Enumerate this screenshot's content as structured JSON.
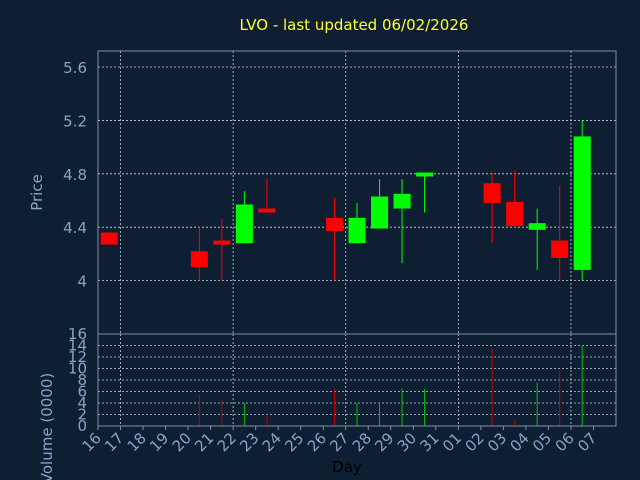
{
  "chart_data": {
    "type": "candlestick",
    "title": "LVO - last updated 06/02/2026",
    "price_panel": {
      "ylabel": "Price",
      "ylim": [
        3.6,
        5.72
      ],
      "yticks": [
        "4",
        "4.4",
        "4.8",
        "5.2",
        "5.6"
      ],
      "grid": true
    },
    "volume_panel": {
      "ylabel": "Volume (0000)",
      "ylim": [
        0,
        16
      ],
      "yticks": [
        "0",
        "2",
        "4",
        "6",
        "8",
        "10",
        "12",
        "14",
        "16"
      ],
      "grid": true
    },
    "xlabel": "Day",
    "x_labels": [
      "16",
      "17",
      "18",
      "19",
      "20",
      "21",
      "22",
      "23",
      "24",
      "25",
      "26",
      "27",
      "28",
      "29",
      "30",
      "31",
      "01",
      "02",
      "03",
      "04",
      "05",
      "06",
      "07"
    ],
    "candles": [
      {
        "day": "16",
        "open": 4.36,
        "high": 4.36,
        "low": 4.27,
        "close": 4.27,
        "volume": 0
      },
      {
        "day": "20",
        "open": 4.22,
        "high": 4.4,
        "low": 4.0,
        "close": 4.1,
        "volume": 5.5
      },
      {
        "day": "21",
        "open": 4.3,
        "high": 4.46,
        "low": 4.0,
        "close": 4.27,
        "volume": 4.5
      },
      {
        "day": "22",
        "open": 4.28,
        "high": 4.67,
        "low": 4.28,
        "close": 4.57,
        "volume": 4.0
      },
      {
        "day": "23",
        "open": 4.54,
        "high": 4.76,
        "low": 4.51,
        "close": 4.51,
        "volume": 2.0
      },
      {
        "day": "26",
        "open": 4.47,
        "high": 4.62,
        "low": 4.0,
        "close": 4.37,
        "volume": 6.5
      },
      {
        "day": "27",
        "open": 4.28,
        "high": 4.58,
        "low": 4.28,
        "close": 4.47,
        "volume": 4.0
      },
      {
        "day": "28",
        "open": 4.39,
        "high": 4.76,
        "low": 4.39,
        "close": 4.63,
        "volume": 4.0
      },
      {
        "day": "29",
        "open": 4.54,
        "high": 4.76,
        "low": 4.13,
        "close": 4.65,
        "volume": 6.5
      },
      {
        "day": "30",
        "open": 4.78,
        "high": 4.81,
        "low": 4.51,
        "close": 4.81,
        "volume": 6.5
      },
      {
        "day": "02",
        "open": 4.73,
        "high": 4.81,
        "low": 4.28,
        "close": 4.58,
        "volume": 13.5
      },
      {
        "day": "03",
        "open": 4.59,
        "high": 4.82,
        "low": 4.4,
        "close": 4.41,
        "volume": 1.0
      },
      {
        "day": "04",
        "open": 4.38,
        "high": 4.54,
        "low": 4.08,
        "close": 4.43,
        "volume": 7.5
      },
      {
        "day": "05",
        "open": 4.3,
        "high": 4.71,
        "low": 4.0,
        "close": 4.17,
        "volume": 9.5
      },
      {
        "day": "06",
        "open": 4.08,
        "high": 5.2,
        "low": 4.0,
        "close": 5.08,
        "volume": 14.0
      }
    ],
    "colors": {
      "background": "#0f1f33",
      "plot_border": "#7f8fa6",
      "grid": "#c8d0dc",
      "axis_text": "#8aa2c4",
      "title": "#ffff33",
      "up": "#00ff00",
      "down": "#ff0000",
      "volume_up": "#00c000",
      "volume_down": "#c00000"
    }
  }
}
